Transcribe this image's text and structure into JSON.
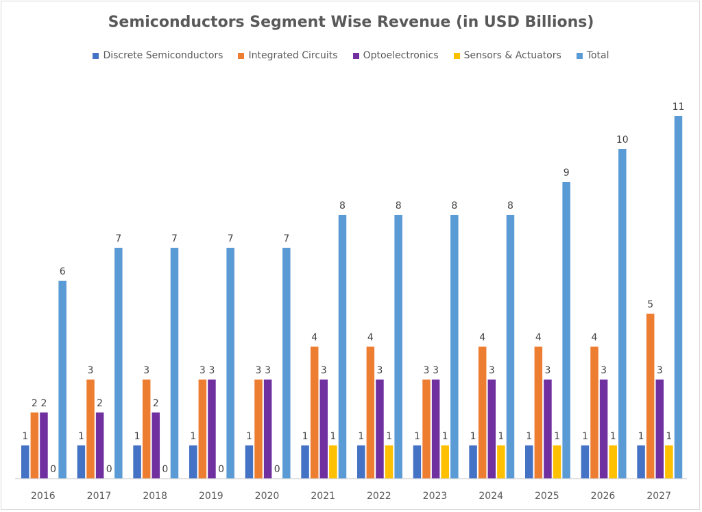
{
  "chart_data": {
    "type": "bar",
    "title": "Semiconductors Segment Wise Revenue (in USD Billions)",
    "categories": [
      "2016",
      "2017",
      "2018",
      "2019",
      "2020",
      "2021",
      "2022",
      "2023",
      "2024",
      "2025",
      "2026",
      "2027"
    ],
    "series": [
      {
        "name": "Discrete Semiconductors",
        "color": "#4472C4",
        "values": [
          1,
          1,
          1,
          1,
          1,
          1,
          1,
          1,
          1,
          1,
          1,
          1
        ]
      },
      {
        "name": "Integrated Circuits",
        "color": "#ED7D31",
        "values": [
          2,
          3,
          3,
          3,
          3,
          4,
          4,
          3,
          4,
          4,
          4,
          5
        ]
      },
      {
        "name": "Optoelectronics",
        "color": "#7030A0",
        "values": [
          2,
          2,
          2,
          3,
          3,
          3,
          3,
          3,
          3,
          3,
          3,
          3
        ]
      },
      {
        "name": "Sensors & Actuators",
        "color": "#FFC000",
        "values": [
          0,
          0,
          0,
          0,
          0,
          1,
          1,
          1,
          1,
          1,
          1,
          1
        ]
      },
      {
        "name": "Total",
        "color": "#5B9BD5",
        "values": [
          6,
          7,
          7,
          7,
          7,
          8,
          8,
          8,
          8,
          9,
          10,
          11
        ]
      }
    ],
    "xlabel": "",
    "ylabel": "",
    "ylim": [
      0,
      11
    ],
    "grid": false,
    "legend": "top",
    "data_labels": true
  }
}
